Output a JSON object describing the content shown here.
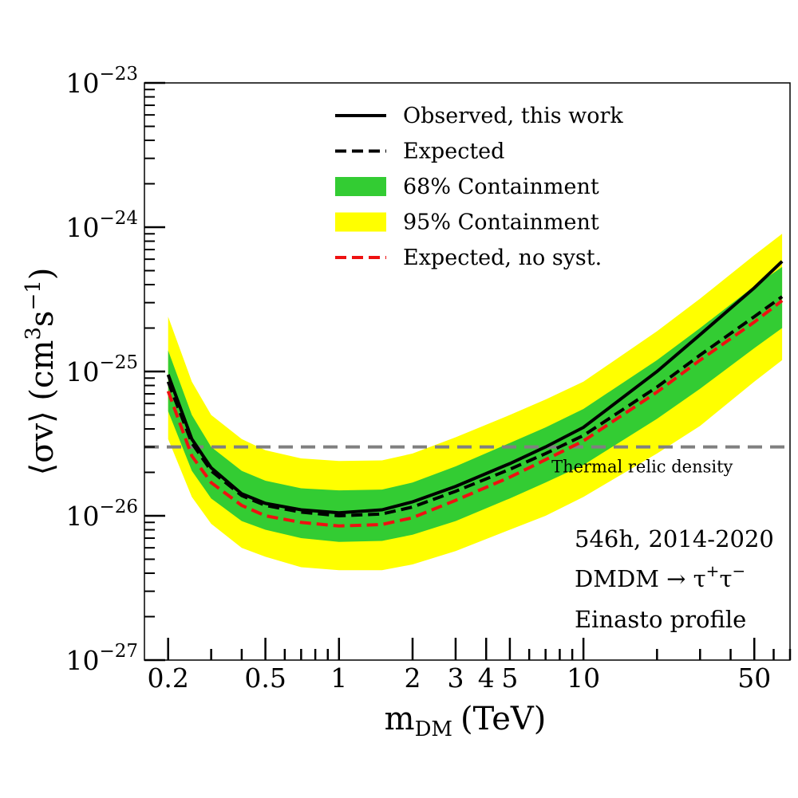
{
  "chart_data": {
    "type": "line",
    "xlabel": "m",
    "xlabel_sub": "DM",
    "xlabel_unit": "(TeV)",
    "ylabel_main": "⟨σv⟩ (cm",
    "ylabel_sup1": "3",
    "ylabel_mid": "s",
    "ylabel_sup2": "−1",
    "ylabel_end": ")",
    "x_scale": "log",
    "y_scale": "log",
    "xlim": [
      0.16,
      70
    ],
    "ylim": [
      1e-27,
      1e-23
    ],
    "x_ticks": [
      {
        "value": 0.2,
        "label": "0.2"
      },
      {
        "value": 0.5,
        "label": "0.5"
      },
      {
        "value": 1,
        "label": "1"
      },
      {
        "value": 2,
        "label": "2"
      },
      {
        "value": 3,
        "label": "3"
      },
      {
        "value": 4,
        "label": "4"
      },
      {
        "value": 5,
        "label": "5"
      },
      {
        "value": 10,
        "label": "10"
      },
      {
        "value": 50,
        "label": "50"
      }
    ],
    "y_ticks": [
      {
        "value": 1e-27,
        "base": "10",
        "exp": "−27"
      },
      {
        "value": 1e-26,
        "base": "10",
        "exp": "−26"
      },
      {
        "value": 1e-25,
        "base": "10",
        "exp": "−25"
      },
      {
        "value": 1e-24,
        "base": "10",
        "exp": "−24"
      },
      {
        "value": 1e-23,
        "base": "10",
        "exp": "−23"
      }
    ],
    "x": [
      0.2,
      0.25,
      0.3,
      0.4,
      0.5,
      0.7,
      1,
      1.5,
      2,
      3,
      5,
      7,
      10,
      20,
      30,
      50,
      65
    ],
    "series": [
      {
        "name": "Observed, this work",
        "style": "solid",
        "color": "#000000",
        "values": [
          9.5e-26,
          3.4e-26,
          2.15e-26,
          1.42e-26,
          1.22e-26,
          1.1e-26,
          1.05e-26,
          1.1e-26,
          1.25e-26,
          1.6e-26,
          2.3e-26,
          3e-26,
          4.1e-26,
          1e-25,
          1.8e-25,
          3.8e-25,
          5.8e-25
        ]
      },
      {
        "name": "Expected",
        "style": "dashed",
        "color": "#000000",
        "values": [
          8.5e-26,
          3.2e-26,
          2.05e-26,
          1.38e-26,
          1.18e-26,
          1.06e-26,
          1e-26,
          1.03e-26,
          1.15e-26,
          1.48e-26,
          2.1e-26,
          2.7e-26,
          3.6e-26,
          7.8e-26,
          1.3e-25,
          2.4e-25,
          3.3e-25
        ]
      },
      {
        "name": "Expected, no syst.",
        "style": "dashed",
        "color": "#ee1111",
        "values": [
          7.3e-26,
          2.6e-26,
          1.7e-26,
          1.18e-26,
          1e-26,
          9e-27,
          8.5e-27,
          8.7e-27,
          9.7e-27,
          1.28e-26,
          1.85e-26,
          2.45e-26,
          3.3e-26,
          7.2e-26,
          1.2e-25,
          2.2e-25,
          3.1e-25
        ]
      }
    ],
    "bands": [
      {
        "name": "95% Containment",
        "color": "#ffff00",
        "lower": [
          3.4e-26,
          1.35e-26,
          8.8e-27,
          6e-27,
          5.2e-27,
          4.4e-27,
          4.2e-27,
          4.2e-27,
          4.6e-27,
          5.7e-27,
          8e-27,
          1e-26,
          1.35e-26,
          2.7e-26,
          4.2e-26,
          8.5e-26,
          1.2e-25
        ],
        "upper": [
          2.4e-25,
          8.5e-26,
          5e-26,
          3.4e-26,
          2.85e-26,
          2.5e-26,
          2.4e-26,
          2.42e-26,
          2.7e-26,
          3.5e-26,
          5e-26,
          6.4e-26,
          8.5e-26,
          1.9e-25,
          3.2e-25,
          6.4e-25,
          9e-25
        ]
      },
      {
        "name": "68% Containment",
        "color": "#33cc33",
        "lower": [
          5.3e-26,
          2.05e-26,
          1.32e-26,
          9.2e-27,
          8e-27,
          7e-27,
          6.6e-27,
          6.7e-27,
          7.4e-27,
          9.2e-27,
          1.32e-26,
          1.7e-26,
          2.25e-26,
          4.7e-26,
          7.6e-26,
          1.45e-25,
          2e-25
        ],
        "upper": [
          1.4e-25,
          5e-26,
          3e-26,
          2.05e-26,
          1.75e-26,
          1.55e-26,
          1.5e-26,
          1.52e-26,
          1.7e-26,
          2.2e-26,
          3.2e-26,
          4.1e-26,
          5.5e-26,
          1.2e-25,
          2e-25,
          3.9e-25,
          5.3e-25
        ]
      }
    ],
    "reference_line": {
      "label": "Thermal relic density",
      "value": 3e-26,
      "color": "#808080",
      "style": "dashed"
    },
    "legend": {
      "placement": "top-center",
      "entries": [
        {
          "label": "Observed, this work",
          "kind": "solid",
          "color": "#000000"
        },
        {
          "label": "Expected",
          "kind": "dashed",
          "color": "#000000"
        },
        {
          "label": "68% Containment",
          "kind": "band",
          "color": "#33cc33"
        },
        {
          "label": "95% Containment",
          "kind": "band",
          "color": "#ffff00"
        },
        {
          "label": "Expected, no syst.",
          "kind": "dashed",
          "color": "#ee1111"
        }
      ]
    },
    "annotations": [
      {
        "text": "546h, 2014-2020"
      },
      {
        "text": "DMDM → τ",
        "sup1": "+",
        "mid": "τ",
        "sup2": "−"
      },
      {
        "text": "Einasto profile"
      }
    ]
  }
}
